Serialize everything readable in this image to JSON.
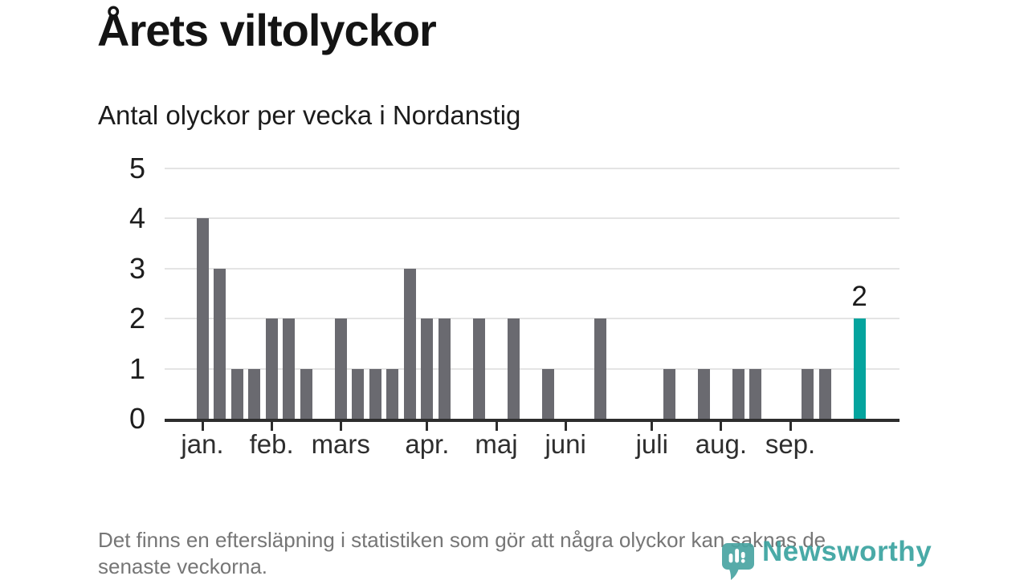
{
  "title": "Årets viltolyckor",
  "subtitle": "Antal olyckor per vecka i Nordanstig",
  "footer": {
    "lines": [
      "Det finns en eftersläpning i statistiken som gör att några olyckor kan saknas de",
      "senaste veckorna."
    ]
  },
  "logo": {
    "text": "Newsworthy",
    "icon": "bar-chart-speech-bubble-icon"
  },
  "colors": {
    "bar": "#6a6a70",
    "highlight": "#04a49e",
    "gridline": "#e4e4e4",
    "axis": "#2d2d2d",
    "logo_teal": "#49a4a2"
  },
  "chart_data": {
    "type": "bar",
    "title": "Årets viltolyckor",
    "subtitle": "Antal olyckor per vecka i Nordanstig",
    "xlabel": "",
    "ylabel": "",
    "x_unit": "week",
    "first_week": 1,
    "ylim": [
      0,
      5
    ],
    "y_ticks": [
      0,
      1,
      2,
      3,
      4,
      5
    ],
    "grid": "horizontal",
    "values": [
      4,
      3,
      1,
      1,
      2,
      2,
      1,
      0,
      2,
      1,
      1,
      1,
      3,
      2,
      2,
      0,
      2,
      0,
      2,
      0,
      1,
      0,
      0,
      2,
      0,
      0,
      0,
      1,
      0,
      1,
      0,
      1,
      1,
      0,
      0,
      1,
      1,
      0,
      2
    ],
    "highlight_index": 38,
    "annotation": {
      "text": "2",
      "index": 38
    },
    "x_ticks": [
      {
        "label": "jan.",
        "index": 0
      },
      {
        "label": "feb.",
        "index": 4
      },
      {
        "label": "mars",
        "index": 8
      },
      {
        "label": "apr.",
        "index": 13
      },
      {
        "label": "maj",
        "index": 17
      },
      {
        "label": "juni",
        "index": 21
      },
      {
        "label": "juli",
        "index": 26
      },
      {
        "label": "aug.",
        "index": 30
      },
      {
        "label": "sep.",
        "index": 34
      }
    ]
  }
}
